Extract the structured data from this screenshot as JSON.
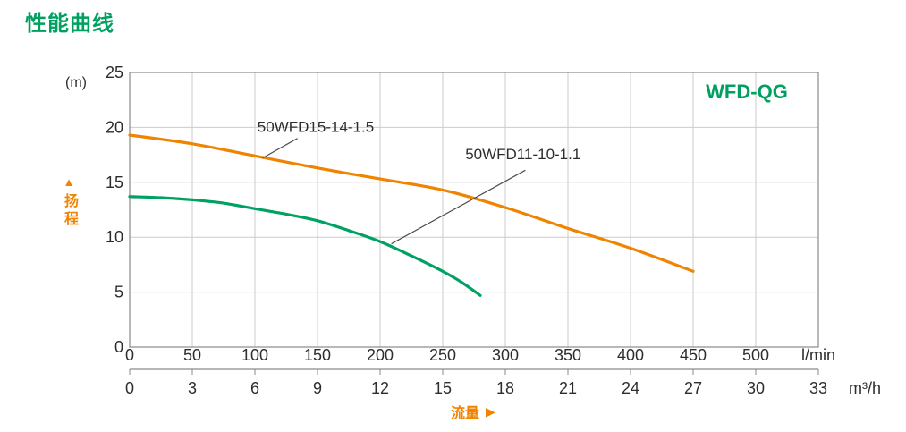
{
  "page": {
    "title": "性能曲线"
  },
  "labels": {
    "y_axis_arrow": "▲",
    "x_axis_arrow": "▶"
  },
  "colors": {
    "green_text": "#00A160",
    "orange": "#F08300",
    "grid": "#CBCBCB",
    "frame": "#8A8A8A",
    "text": "#2D2D2D",
    "leader": "#4D4D4D"
  },
  "chart_data": {
    "type": "line",
    "title": "性能曲线",
    "model_family_label": "WFD-QG",
    "x_title": "流量",
    "y_axis": {
      "title": "扬程",
      "unit": "(m)",
      "ticks": [
        0,
        5,
        10,
        15,
        20,
        25
      ],
      "max": 25,
      "grid": true
    },
    "x_axis_primary": {
      "unit": "l/min",
      "ticks": [
        0,
        50,
        100,
        150,
        200,
        250,
        300,
        350,
        400,
        450,
        500
      ],
      "max": 550,
      "grid": true
    },
    "x_axis_secondary": {
      "unit": "m³/h",
      "ticks": [
        0,
        3,
        6,
        9,
        12,
        15,
        18,
        21,
        24,
        27,
        30,
        33
      ],
      "max": 33
    },
    "series": [
      {
        "name": "50WFD15-14-1.5",
        "color": "#F08300",
        "x_unit": "l/min",
        "y_unit": "m",
        "points": [
          [
            0,
            19.3
          ],
          [
            50,
            18.5
          ],
          [
            100,
            17.4
          ],
          [
            150,
            16.3
          ],
          [
            200,
            15.3
          ],
          [
            250,
            14.3
          ],
          [
            300,
            12.7
          ],
          [
            350,
            10.8
          ],
          [
            400,
            9.0
          ],
          [
            450,
            6.9
          ]
        ]
      },
      {
        "name": "50WFD11-10-1.1",
        "color": "#00A263",
        "x_unit": "l/min",
        "y_unit": "m",
        "points": [
          [
            0,
            13.7
          ],
          [
            25,
            13.6
          ],
          [
            50,
            13.4
          ],
          [
            75,
            13.1
          ],
          [
            100,
            12.6
          ],
          [
            125,
            12.1
          ],
          [
            150,
            11.5
          ],
          [
            175,
            10.6
          ],
          [
            200,
            9.6
          ],
          [
            225,
            8.3
          ],
          [
            250,
            6.9
          ],
          [
            265,
            5.9
          ],
          [
            280,
            4.7
          ]
        ]
      }
    ],
    "annotations": [
      {
        "series": 0,
        "text_at": [
          102,
          19.6
        ],
        "leader": [
          [
            134,
            19.0
          ],
          [
            106,
            17.2
          ]
        ]
      },
      {
        "series": 1,
        "text_at": [
          268,
          17.1
        ],
        "leader": [
          [
            316,
            16.1
          ],
          [
            209,
            9.4
          ]
        ]
      }
    ]
  }
}
